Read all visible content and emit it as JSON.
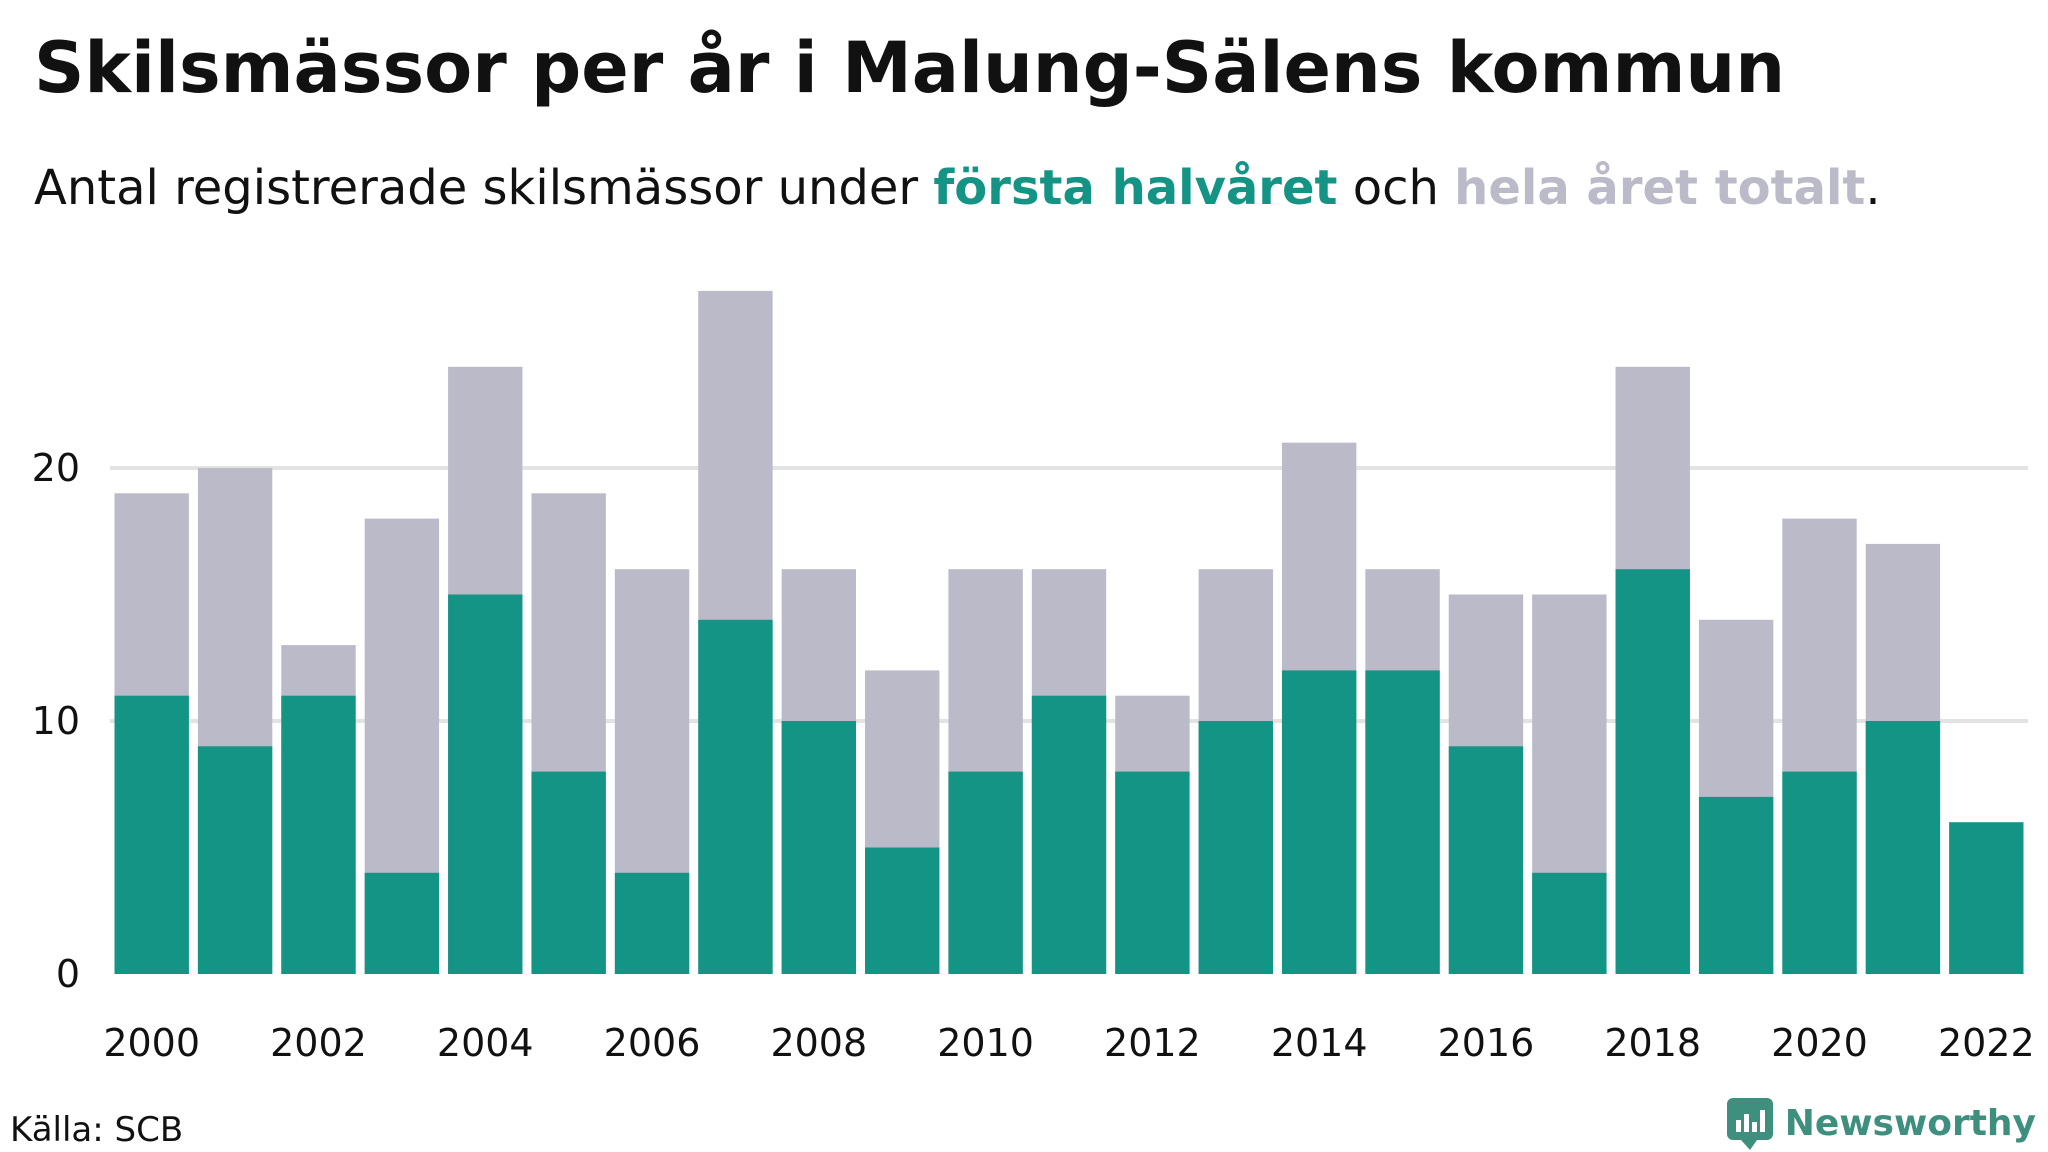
{
  "header": {
    "title": "Skilsmässor per år i Malung-Sälens kommun",
    "subtitle_pre": "Antal registrerade skilsmässor under ",
    "subtitle_first": "första halvåret",
    "subtitle_mid": " och ",
    "subtitle_total": "hela året totalt",
    "subtitle_post": "."
  },
  "footer": {
    "source": "Källa: SCB",
    "brand": "Newsworthy"
  },
  "colors": {
    "first_half": "#139485",
    "full_year": "#bbbac8",
    "grid": "#e3e3e3",
    "brand": "#3f8f7e"
  },
  "chart_data": {
    "type": "bar",
    "stacked": "overlay",
    "categories": [
      "2000",
      "2001",
      "2002",
      "2003",
      "2004",
      "2005",
      "2006",
      "2007",
      "2008",
      "2009",
      "2010",
      "2011",
      "2012",
      "2013",
      "2014",
      "2015",
      "2016",
      "2017",
      "2018",
      "2019",
      "2020",
      "2021",
      "2022"
    ],
    "x_tick_labels": [
      "2000",
      "2002",
      "2004",
      "2006",
      "2008",
      "2010",
      "2012",
      "2014",
      "2016",
      "2018",
      "2020",
      "2022"
    ],
    "series": [
      {
        "name": "hela året totalt",
        "values": [
          19,
          20,
          13,
          18,
          24,
          19,
          16,
          27,
          16,
          12,
          16,
          16,
          11,
          16,
          21,
          16,
          15,
          15,
          24,
          14,
          18,
          17,
          null
        ]
      },
      {
        "name": "första halvåret",
        "values": [
          11,
          9,
          11,
          4,
          15,
          8,
          4,
          14,
          10,
          5,
          8,
          11,
          8,
          10,
          12,
          12,
          9,
          4,
          16,
          7,
          8,
          10,
          6
        ]
      }
    ],
    "y_ticks": [
      0,
      10,
      20
    ],
    "ylim": [
      0,
      27
    ],
    "grid": true,
    "title": "Skilsmässor per år i Malung-Sälens kommun",
    "xlabel": "",
    "ylabel": ""
  }
}
